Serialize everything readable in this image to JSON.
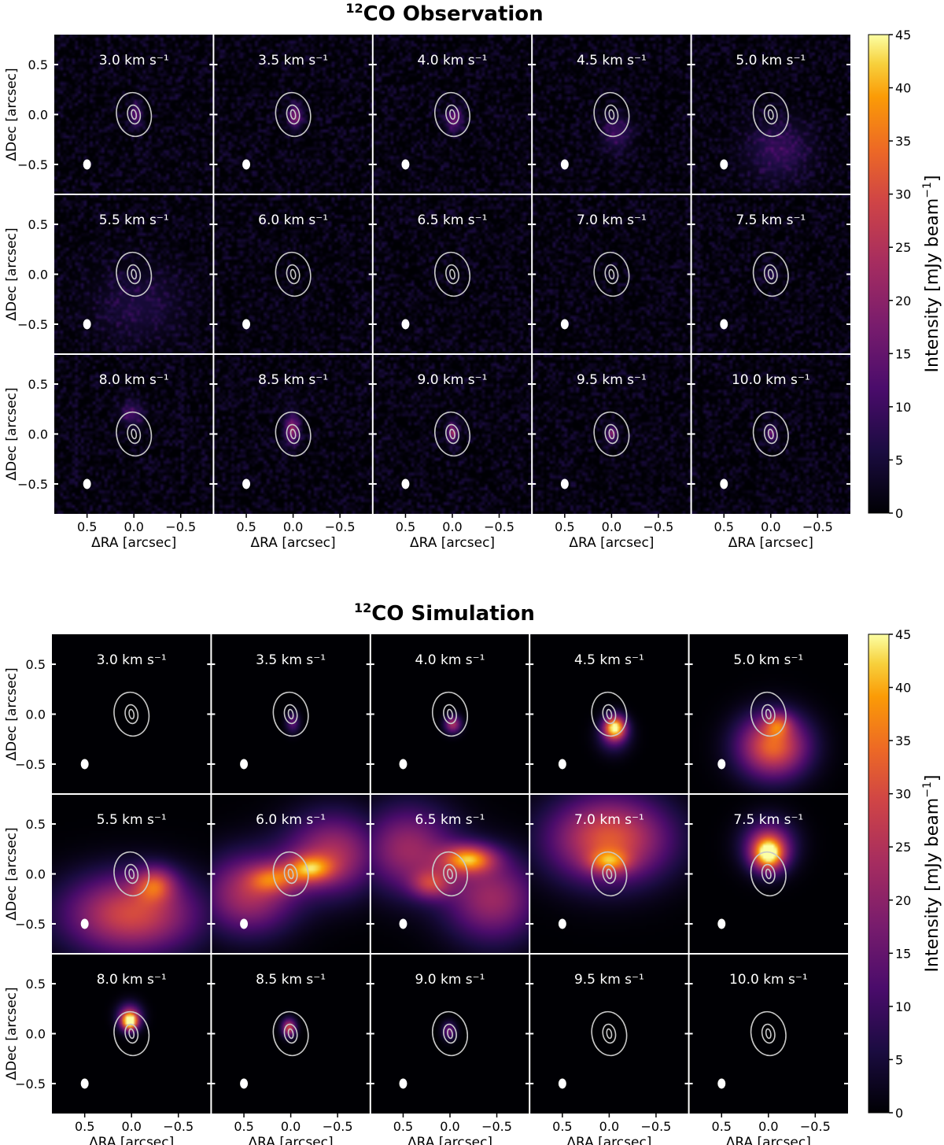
{
  "chart_data": [
    {
      "type": "heatmap",
      "title": "CO Observation",
      "title_isotope": "12",
      "xlabel": "ΔRA  [arcsec]",
      "ylabel": "ΔDec  [arcsec]",
      "xlim": [
        0.85,
        -0.85
      ],
      "ylim": [
        -0.8,
        0.8
      ],
      "xticks": [
        0.5,
        0.0,
        -0.5
      ],
      "xtick_labels": [
        "0.5",
        "0.0",
        "−0.5"
      ],
      "yticks": [
        0.5,
        0.0,
        -0.5
      ],
      "ytick_labels": [
        "0.5",
        "0.0",
        "−0.5"
      ],
      "colorbar": {
        "label": "Intensity [mJy beam",
        "label_exponent": "−1",
        "label_close": "]",
        "range": [
          0,
          45
        ],
        "ticks": [
          0,
          5,
          10,
          15,
          20,
          25,
          30,
          35,
          40,
          45
        ],
        "tick_labels": [
          "0",
          "5",
          "10",
          "15",
          "20",
          "25",
          "30",
          "35",
          "40",
          "45"
        ],
        "colormap": "inferno-like"
      },
      "contours": "continuum contours centered at (0,0) in every panel",
      "beam_position": [
        0.5,
        -0.5
      ],
      "panels": [
        {
          "velocity": "3.0 km s⁻¹",
          "emission": [
            {
              "x": -0.02,
              "y": 0.0,
              "amp": 14,
              "sx": 0.04,
              "sy": 0.08
            }
          ]
        },
        {
          "velocity": "3.5 km s⁻¹",
          "emission": [
            {
              "x": -0.02,
              "y": -0.02,
              "amp": 18,
              "sx": 0.05,
              "sy": 0.08
            }
          ]
        },
        {
          "velocity": "4.0 km s⁻¹",
          "emission": [
            {
              "x": -0.02,
              "y": -0.05,
              "amp": 15,
              "sx": 0.06,
              "sy": 0.08
            }
          ]
        },
        {
          "velocity": "4.5 km s⁻¹",
          "emission": [
            {
              "x": -0.05,
              "y": -0.18,
              "amp": 9,
              "sx": 0.1,
              "sy": 0.12
            }
          ]
        },
        {
          "velocity": "5.0 km s⁻¹",
          "emission": [
            {
              "x": -0.08,
              "y": -0.35,
              "amp": 8,
              "sx": 0.22,
              "sy": 0.2
            }
          ]
        },
        {
          "velocity": "5.5 km s⁻¹",
          "emission": [
            {
              "x": -0.05,
              "y": -0.3,
              "amp": 5,
              "sx": 0.3,
              "sy": 0.25
            }
          ]
        },
        {
          "velocity": "6.0 km s⁻¹",
          "emission": []
        },
        {
          "velocity": "6.5 km s⁻¹",
          "emission": []
        },
        {
          "velocity": "7.0 km s⁻¹",
          "emission": []
        },
        {
          "velocity": "7.5 km s⁻¹",
          "emission": [
            {
              "x": 0.0,
              "y": 0.0,
              "amp": 6,
              "sx": 0.05,
              "sy": 0.06
            }
          ]
        },
        {
          "velocity": "8.0 km s⁻¹",
          "emission": [
            {
              "x": 0.02,
              "y": 0.2,
              "amp": 10,
              "sx": 0.08,
              "sy": 0.08
            }
          ]
        },
        {
          "velocity": "8.5 km s⁻¹",
          "emission": [
            {
              "x": 0.01,
              "y": 0.05,
              "amp": 20,
              "sx": 0.05,
              "sy": 0.1
            }
          ]
        },
        {
          "velocity": "9.0 km s⁻¹",
          "emission": [
            {
              "x": 0.0,
              "y": 0.02,
              "amp": 20,
              "sx": 0.04,
              "sy": 0.07
            }
          ]
        },
        {
          "velocity": "9.5 km s⁻¹",
          "emission": [
            {
              "x": 0.0,
              "y": 0.0,
              "amp": 17,
              "sx": 0.04,
              "sy": 0.06
            }
          ]
        },
        {
          "velocity": "10.0 km s⁻¹",
          "emission": [
            {
              "x": 0.0,
              "y": 0.0,
              "amp": 14,
              "sx": 0.04,
              "sy": 0.06
            }
          ]
        }
      ]
    },
    {
      "type": "heatmap",
      "title": "CO Simulation",
      "title_isotope": "12",
      "xlabel": "ΔRA  [arcsec]",
      "ylabel": "ΔDec  [arcsec]",
      "xlim": [
        0.85,
        -0.85
      ],
      "ylim": [
        -0.8,
        0.8
      ],
      "xticks": [
        0.5,
        0.0,
        -0.5
      ],
      "xtick_labels": [
        "0.5",
        "0.0",
        "−0.5"
      ],
      "yticks": [
        0.5,
        0.0,
        -0.5
      ],
      "ytick_labels": [
        "0.5",
        "0.0",
        "−0.5"
      ],
      "colorbar": {
        "label": "Intensity [mJy beam",
        "label_exponent": "−1",
        "label_close": "]",
        "range": [
          0,
          45
        ],
        "ticks": [
          0,
          5,
          10,
          15,
          20,
          25,
          30,
          35,
          40,
          45
        ],
        "tick_labels": [
          "0",
          "5",
          "10",
          "15",
          "20",
          "25",
          "30",
          "35",
          "40",
          "45"
        ],
        "colormap": "inferno-like"
      },
      "contours": "continuum contours centered at (0,0) in every panel",
      "beam_position": [
        0.5,
        -0.5
      ],
      "panels": [
        {
          "velocity": "3.0 km s⁻¹",
          "emission": []
        },
        {
          "velocity": "3.5 km s⁻¹",
          "emission": [
            {
              "x": -0.02,
              "y": -0.08,
              "amp": 14,
              "sx": 0.05,
              "sy": 0.07
            }
          ]
        },
        {
          "velocity": "4.0 km s⁻¹",
          "emission": [
            {
              "x": -0.03,
              "y": -0.1,
              "amp": 24,
              "sx": 0.06,
              "sy": 0.06
            }
          ]
        },
        {
          "velocity": "4.5 km s⁻¹",
          "emission": [
            {
              "x": -0.06,
              "y": -0.13,
              "amp": 40,
              "sx": 0.08,
              "sy": 0.08
            },
            {
              "x": -0.05,
              "y": -0.22,
              "amp": 12,
              "sx": 0.12,
              "sy": 0.12
            }
          ]
        },
        {
          "velocity": "5.0 km s⁻¹",
          "emission": [
            {
              "x": -0.05,
              "y": -0.32,
              "amp": 34,
              "sx": 0.26,
              "sy": 0.22
            },
            {
              "x": -0.1,
              "y": -0.1,
              "amp": 16,
              "sx": 0.1,
              "sy": 0.08
            }
          ]
        },
        {
          "velocity": "5.5 km s⁻¹",
          "emission": [
            {
              "x": 0.0,
              "y": -0.4,
              "amp": 30,
              "sx": 0.5,
              "sy": 0.28
            },
            {
              "x": -0.25,
              "y": -0.1,
              "amp": 20,
              "sx": 0.15,
              "sy": 0.12
            }
          ]
        },
        {
          "velocity": "6.0 km s⁻¹",
          "emission": [
            {
              "x": 0.45,
              "y": -0.2,
              "amp": 24,
              "sx": 0.35,
              "sy": 0.28
            },
            {
              "x": -0.45,
              "y": 0.2,
              "amp": 24,
              "sx": 0.35,
              "sy": 0.28
            },
            {
              "x": -0.2,
              "y": 0.05,
              "amp": 24,
              "sx": 0.18,
              "sy": 0.1
            },
            {
              "x": 0.2,
              "y": -0.05,
              "amp": 18,
              "sx": 0.18,
              "sy": 0.1
            }
          ]
        },
        {
          "velocity": "6.5 km s⁻¹",
          "emission": [
            {
              "x": 0.45,
              "y": 0.25,
              "amp": 22,
              "sx": 0.35,
              "sy": 0.3
            },
            {
              "x": -0.45,
              "y": -0.25,
              "amp": 22,
              "sx": 0.35,
              "sy": 0.3
            },
            {
              "x": -0.2,
              "y": 0.15,
              "amp": 32,
              "sx": 0.2,
              "sy": 0.1
            },
            {
              "x": 0.2,
              "y": -0.1,
              "amp": 18,
              "sx": 0.15,
              "sy": 0.1
            }
          ]
        },
        {
          "velocity": "7.0 km s⁻¹",
          "emission": [
            {
              "x": 0.0,
              "y": 0.35,
              "amp": 32,
              "sx": 0.45,
              "sy": 0.3
            },
            {
              "x": 0.0,
              "y": 0.12,
              "amp": 18,
              "sx": 0.15,
              "sy": 0.08
            }
          ]
        },
        {
          "velocity": "7.5 km s⁻¹",
          "emission": [
            {
              "x": 0.0,
              "y": 0.2,
              "amp": 38,
              "sx": 0.12,
              "sy": 0.12
            },
            {
              "x": 0.0,
              "y": 0.3,
              "amp": 18,
              "sx": 0.2,
              "sy": 0.18
            }
          ]
        },
        {
          "velocity": "8.0 km s⁻¹",
          "emission": [
            {
              "x": 0.02,
              "y": 0.12,
              "amp": 42,
              "sx": 0.06,
              "sy": 0.06
            },
            {
              "x": 0.02,
              "y": 0.18,
              "amp": 20,
              "sx": 0.09,
              "sy": 0.09
            }
          ]
        },
        {
          "velocity": "8.5 km s⁻¹",
          "emission": [
            {
              "x": 0.02,
              "y": 0.06,
              "amp": 30,
              "sx": 0.05,
              "sy": 0.06
            }
          ]
        },
        {
          "velocity": "9.0 km s⁻¹",
          "emission": [
            {
              "x": 0.01,
              "y": 0.03,
              "amp": 16,
              "sx": 0.05,
              "sy": 0.06
            }
          ]
        },
        {
          "velocity": "9.5 km s⁻¹",
          "emission": []
        },
        {
          "velocity": "10.0 km s⁻¹",
          "emission": []
        }
      ]
    }
  ]
}
